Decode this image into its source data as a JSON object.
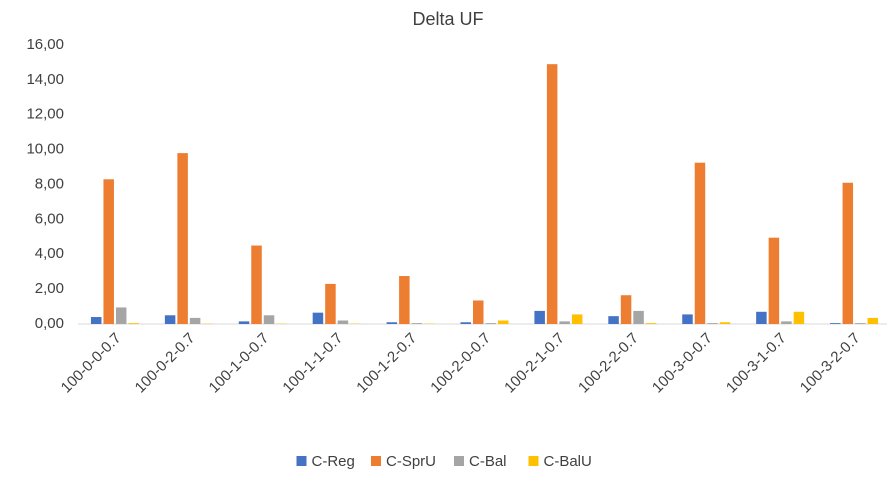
{
  "chart_data": {
    "type": "bar",
    "title": "Delta UF",
    "categories": [
      "100-0-0-0.7",
      "100-0-2-0.7",
      "100-1-0-0.7",
      "100-1-1-0.7",
      "100-1-2-0.7",
      "100-2-0-0.7",
      "100-2-1-0.7",
      "100-2-2-0.7",
      "100-3-0-0.7",
      "100-3-1-0.7",
      "100-3-2-0.7"
    ],
    "series": [
      {
        "name": "C-Reg",
        "color": "#4472c4",
        "values": [
          0.4,
          0.5,
          0.15,
          0.65,
          0.1,
          0.1,
          0.75,
          0.45,
          0.55,
          0.7,
          0.05
        ]
      },
      {
        "name": "C-SprU",
        "color": "#ed7d31",
        "values": [
          8.3,
          9.8,
          4.5,
          2.3,
          2.75,
          1.35,
          14.9,
          1.65,
          9.25,
          4.95,
          8.1
        ]
      },
      {
        "name": "C-Bal",
        "color": "#a5a5a5",
        "values": [
          0.95,
          0.35,
          0.5,
          0.2,
          0.05,
          0.05,
          0.15,
          0.75,
          0.05,
          0.15,
          0.05
        ]
      },
      {
        "name": "C-BalU",
        "color": "#ffc000",
        "values": [
          0.05,
          0.02,
          0.02,
          0.02,
          0.02,
          0.2,
          0.55,
          0.05,
          0.1,
          0.7,
          0.35
        ]
      }
    ],
    "ylim": [
      0,
      16
    ],
    "yticks": [
      {
        "value": 0,
        "label": "0,00"
      },
      {
        "value": 2,
        "label": "2,00"
      },
      {
        "value": 4,
        "label": "4,00"
      },
      {
        "value": 6,
        "label": "6,00"
      },
      {
        "value": 8,
        "label": "8,00"
      },
      {
        "value": 10,
        "label": "10,00"
      },
      {
        "value": 12,
        "label": "12,00"
      },
      {
        "value": 14,
        "label": "14,00"
      },
      {
        "value": 16,
        "label": "16,00"
      }
    ],
    "legend": "bottom"
  }
}
